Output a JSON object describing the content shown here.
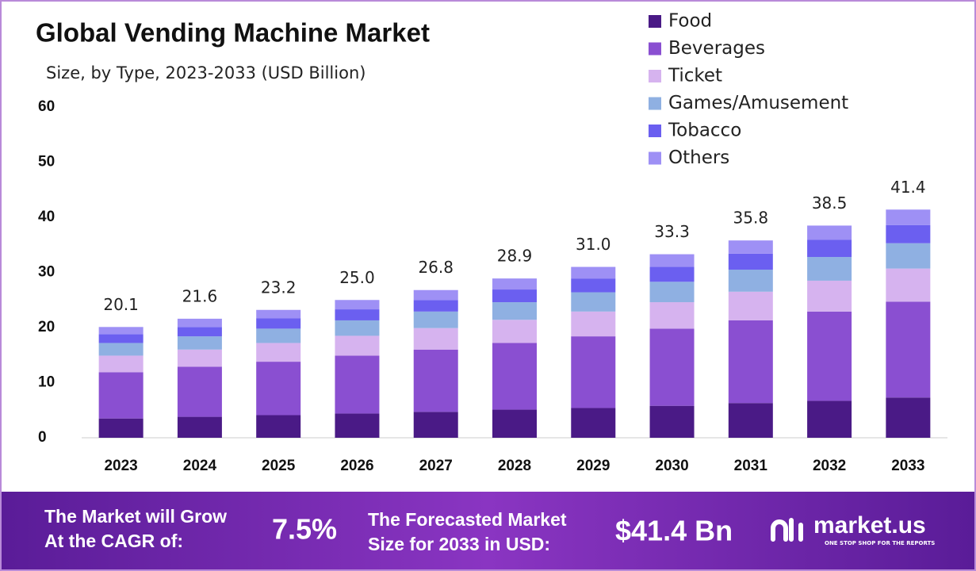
{
  "chart_data": {
    "type": "stacked-bar",
    "title": "Global Vending Machine Market",
    "subtitle": "Size, by Type, 2023-2033 (USD Billion)",
    "categories": [
      "2023",
      "2024",
      "2025",
      "2026",
      "2027",
      "2028",
      "2029",
      "2030",
      "2031",
      "2032",
      "2033"
    ],
    "series": [
      {
        "name": "Food",
        "color": "#4a1a86",
        "values": [
          3.5,
          3.8,
          4.1,
          4.4,
          4.7,
          5.1,
          5.4,
          5.8,
          6.3,
          6.7,
          7.3
        ]
      },
      {
        "name": "Beverages",
        "color": "#8a4fd1",
        "values": [
          8.4,
          9.1,
          9.7,
          10.5,
          11.3,
          12.1,
          13.0,
          14.0,
          15.0,
          16.2,
          17.4
        ]
      },
      {
        "name": "Ticket",
        "color": "#d6b3ef",
        "values": [
          3.0,
          3.1,
          3.4,
          3.6,
          3.9,
          4.2,
          4.5,
          4.8,
          5.2,
          5.6,
          6.0
        ]
      },
      {
        "name": "Games/Amusement",
        "color": "#8fb0e2",
        "values": [
          2.3,
          2.4,
          2.6,
          2.8,
          3.0,
          3.2,
          3.5,
          3.7,
          4.0,
          4.3,
          4.6
        ]
      },
      {
        "name": "Tobacco",
        "color": "#6b5ff0",
        "values": [
          1.6,
          1.7,
          1.9,
          2.0,
          2.1,
          2.3,
          2.5,
          2.7,
          2.9,
          3.1,
          3.3
        ]
      },
      {
        "name": "Others",
        "color": "#9e90f5",
        "values": [
          1.3,
          1.5,
          1.5,
          1.7,
          1.8,
          2.0,
          2.1,
          2.3,
          2.4,
          2.6,
          2.8
        ]
      }
    ],
    "totals": [
      20.1,
      21.6,
      23.2,
      25.0,
      26.8,
      28.9,
      31.0,
      33.3,
      35.8,
      38.5,
      41.4
    ],
    "total_labels": [
      "20.1",
      "21.6",
      "23.2",
      "25.0",
      "26.8",
      "28.9",
      "31.0",
      "33.3",
      "35.8",
      "38.5",
      "41.4"
    ],
    "ylim": [
      0,
      60
    ],
    "yticks": [
      0,
      10,
      20,
      30,
      40,
      50,
      60
    ],
    "grid": false
  },
  "footer": {
    "cagr_text": [
      "The Market will Grow",
      "At the CAGR of:"
    ],
    "cagr_value": "7.5%",
    "forecast_text": [
      "The Forecasted Market",
      "Size for 2033 in USD:"
    ],
    "forecast_value": "$41.4 Bn",
    "brand": "market.us",
    "tagline": "ONE STOP SHOP FOR THE REPORTS"
  }
}
